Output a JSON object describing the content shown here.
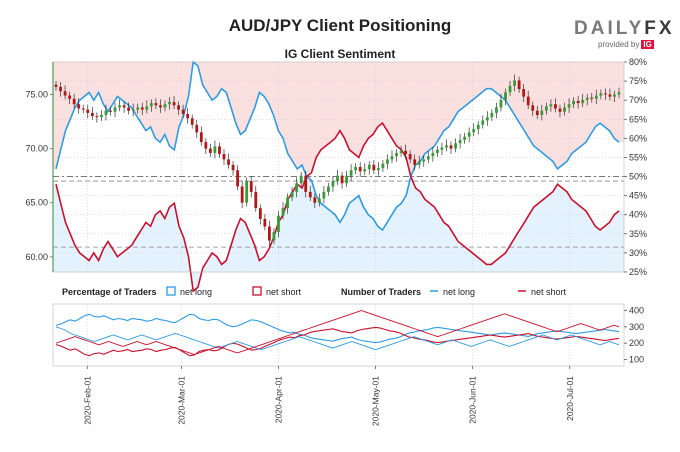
{
  "header": {
    "title": "AUD/JPY Client Positioning",
    "subtitle": "IG Client Sentiment",
    "logo_main_a": "DAILY",
    "logo_main_b": "FX",
    "logo_sub": "provided by",
    "logo_badge": "IG"
  },
  "colors": {
    "net_long": "#2f9be0",
    "net_short": "#c8102e",
    "long_fill": "#e3f2fc",
    "short_fill": "#fbe0e0",
    "candle_up": "#3a9a3a",
    "candle_down": "#b01818",
    "left_axis": "#3a8a3a"
  },
  "chart_data": [
    {
      "type": "line",
      "name": "main",
      "x_ticks": [
        "2020-Feb-01",
        "2020-Mar-01",
        "2020-Apr-01",
        "2020-May-01",
        "2020-Jun-01",
        "2020-Jul-01"
      ],
      "price_axis": {
        "ticks": [
          "60.00",
          "65.00",
          "70.00",
          "75.00"
        ],
        "ylim": [
          58.6,
          78.0
        ]
      },
      "pct_axis": {
        "ticks": [
          "25%",
          "30%",
          "35%",
          "40%",
          "45%",
          "50%",
          "55%",
          "60%",
          "65%",
          "70%",
          "75%",
          "80%"
        ],
        "ylim": [
          25,
          80
        ]
      },
      "reference_lines": {
        "price": [
          60.9,
          67.0
        ],
        "pct": [
          50
        ]
      },
      "price_close": [
        75.7,
        75.3,
        74.9,
        74.6,
        74.1,
        73.7,
        73.6,
        73.3,
        73.0,
        72.9,
        73.1,
        73.5,
        73.4,
        73.8,
        74.0,
        73.8,
        73.5,
        73.6,
        73.8,
        73.6,
        73.9,
        74.2,
        74.0,
        73.8,
        74.1,
        74.3,
        74.0,
        73.6,
        73.2,
        72.8,
        72.2,
        71.5,
        70.6,
        70.0,
        69.6,
        70.2,
        69.5,
        69.0,
        68.5,
        68.0,
        66.5,
        65.0,
        67.0,
        66.0,
        64.5,
        63.5,
        62.8,
        61.5,
        62.3,
        63.8,
        64.5,
        65.5,
        66.0,
        66.8,
        67.5,
        66.0,
        65.5,
        65.0,
        65.4,
        66.0,
        66.5,
        67.0,
        67.5,
        66.8,
        67.5,
        68.0,
        68.3,
        67.9,
        68.1,
        68.5,
        68.0,
        68.2,
        68.6,
        69.0,
        69.3,
        69.6,
        69.8,
        69.5,
        69.0,
        68.5,
        68.8,
        69.0,
        69.3,
        69.6,
        69.9,
        70.1,
        70.3,
        70.0,
        70.5,
        70.8,
        71.1,
        71.5,
        71.8,
        72.2,
        72.6,
        72.9,
        73.3,
        73.8,
        74.5,
        75.2,
        75.8,
        76.3,
        75.5,
        74.8,
        74.0,
        73.5,
        73.1,
        73.5,
        73.9,
        74.1,
        73.7,
        73.4,
        73.8,
        74.1,
        74.4,
        74.2,
        74.5,
        74.7,
        74.6,
        74.9,
        75.1,
        75.0,
        74.8,
        75.0,
        75.2
      ],
      "net_long_pct": [
        52,
        57,
        62,
        65,
        68,
        70,
        71,
        72,
        70,
        72,
        69,
        67,
        69,
        71,
        70,
        69,
        68,
        66,
        64,
        62,
        63,
        60,
        59,
        61,
        58,
        57,
        63,
        66,
        71,
        80,
        79,
        74,
        72,
        70,
        71,
        73,
        72,
        68,
        64,
        61,
        62,
        65,
        68,
        72,
        71,
        69,
        66,
        62,
        60,
        56,
        54,
        52,
        53,
        50,
        49,
        45,
        43,
        42,
        41,
        40,
        38,
        40,
        43,
        44,
        45,
        42,
        40,
        39,
        37,
        36,
        38,
        40,
        42,
        43,
        45,
        50,
        53,
        54,
        56,
        57,
        58,
        60,
        62,
        63,
        65,
        67,
        68,
        69,
        70,
        71,
        72,
        73,
        73,
        72,
        71,
        70,
        68,
        66,
        64,
        62,
        60,
        58,
        57,
        56,
        55,
        54,
        52,
        53,
        54,
        56,
        57,
        58,
        59,
        61,
        63,
        64,
        63,
        62,
        60,
        59
      ],
      "net_short_pct": [
        48,
        43,
        38,
        35,
        32,
        30,
        29,
        28,
        30,
        28,
        31,
        33,
        31,
        29,
        30,
        31,
        32,
        34,
        36,
        38,
        37,
        40,
        41,
        39,
        42,
        43,
        37,
        34,
        29,
        20,
        21,
        26,
        28,
        30,
        29,
        27,
        28,
        32,
        36,
        39,
        38,
        35,
        32,
        28,
        29,
        31,
        34,
        38,
        40,
        44,
        46,
        48,
        47,
        50,
        51,
        55,
        57,
        58,
        59,
        60,
        62,
        60,
        57,
        56,
        55,
        58,
        60,
        61,
        63,
        64,
        62,
        60,
        58,
        57,
        55,
        50,
        47,
        46,
        44,
        43,
        42,
        40,
        38,
        37,
        35,
        33,
        32,
        31,
        30,
        29,
        28,
        27,
        27,
        28,
        29,
        30,
        32,
        34,
        36,
        38,
        40,
        42,
        43,
        44,
        45,
        46,
        48,
        47,
        46,
        44,
        43,
        42,
        41,
        39,
        37,
        36,
        37,
        38,
        40,
        41
      ]
    },
    {
      "type": "line",
      "name": "bottom",
      "legend": {
        "pct_title": "Percentage of Traders",
        "pct_long": "net long",
        "pct_short": "net short",
        "num_title": "Number of Traders",
        "num_long": "net long",
        "num_short": "net short"
      },
      "right_axis": {
        "ticks": [
          "100",
          "200",
          "300",
          "400"
        ],
        "ylim": [
          60,
          440
        ]
      },
      "pct_long": [
        64,
        66,
        69,
        72,
        70,
        74,
        78,
        80,
        77,
        76,
        78,
        75,
        72,
        74,
        73,
        71,
        74,
        73,
        72,
        70,
        71,
        74,
        72,
        71,
        69,
        68,
        72,
        76,
        80,
        79,
        74,
        72,
        71,
        73,
        72,
        68,
        64,
        62,
        63,
        66,
        69,
        72,
        71,
        69,
        66,
        63,
        60,
        57,
        55,
        53,
        54,
        51,
        50,
        47,
        45,
        44,
        43,
        42,
        41,
        43,
        45,
        46,
        47,
        44,
        42,
        41,
        40,
        39,
        40,
        42,
        44,
        45,
        47,
        50,
        53,
        54,
        56,
        57,
        58,
        60,
        61,
        60,
        59,
        58,
        57,
        56,
        55,
        54,
        53,
        52,
        51,
        50,
        51,
        52,
        53,
        52,
        51,
        50,
        49,
        48,
        50,
        52,
        53,
        54,
        55,
        56,
        55,
        54,
        53,
        52,
        53,
        54,
        55,
        56,
        57,
        58,
        57,
        56,
        55
      ],
      "pct_short": [
        36,
        34,
        31,
        28,
        30,
        26,
        22,
        20,
        23,
        24,
        22,
        25,
        28,
        26,
        27,
        29,
        26,
        27,
        28,
        30,
        29,
        26,
        28,
        29,
        31,
        32,
        28,
        24,
        20,
        21,
        26,
        28,
        29,
        27,
        28,
        32,
        36,
        38,
        37,
        34,
        31,
        28,
        29,
        31,
        34,
        37,
        40,
        43,
        45,
        47,
        46,
        49,
        50,
        53,
        55,
        56,
        57,
        58,
        59,
        57,
        55,
        54,
        53,
        56,
        58,
        59,
        60,
        61,
        60,
        58,
        56,
        55,
        53,
        50,
        47,
        46,
        44,
        43,
        42,
        40,
        39,
        40,
        41,
        42,
        43,
        44,
        45,
        46,
        47,
        48,
        49,
        50,
        49,
        48,
        47,
        48,
        49,
        50,
        51,
        52,
        50,
        48,
        47,
        46,
        45,
        44,
        45,
        46,
        47,
        48,
        47,
        46,
        45,
        44,
        43,
        42,
        43,
        44,
        45
      ],
      "num_long": [
        300,
        290,
        280,
        260,
        250,
        240,
        230,
        220,
        210,
        220,
        230,
        240,
        250,
        240,
        230,
        220,
        230,
        240,
        250,
        240,
        230,
        220,
        230,
        240,
        250,
        260,
        250,
        240,
        230,
        220,
        210,
        200,
        190,
        180,
        170,
        180,
        190,
        200,
        210,
        200,
        190,
        180,
        170,
        160,
        170,
        180,
        190,
        200,
        210,
        220,
        230,
        240,
        230,
        220,
        210,
        200,
        190,
        180,
        170,
        180,
        190,
        200,
        210,
        200,
        190,
        180,
        170,
        160,
        170,
        180,
        190,
        200,
        210,
        220,
        230,
        240,
        230,
        220,
        210,
        200,
        190,
        200,
        210,
        220,
        210,
        200,
        190,
        180,
        190,
        200,
        210,
        220,
        210,
        200,
        190,
        180,
        190,
        200,
        210,
        220,
        230,
        240,
        250,
        240,
        230,
        220,
        230,
        240,
        250,
        240,
        230,
        220,
        210,
        200,
        190,
        200,
        210,
        200,
        190
      ],
      "num_short": [
        200,
        210,
        220,
        230,
        240,
        230,
        220,
        210,
        200,
        190,
        200,
        210,
        200,
        190,
        180,
        190,
        200,
        210,
        200,
        190,
        200,
        210,
        200,
        190,
        180,
        170,
        160,
        150,
        140,
        130,
        140,
        150,
        160,
        170,
        180,
        170,
        160,
        150,
        140,
        150,
        160,
        170,
        180,
        190,
        200,
        210,
        220,
        230,
        240,
        250,
        260,
        270,
        280,
        290,
        300,
        310,
        320,
        330,
        340,
        350,
        360,
        370,
        380,
        390,
        400,
        390,
        380,
        370,
        360,
        350,
        340,
        330,
        320,
        310,
        300,
        290,
        280,
        270,
        260,
        250,
        240,
        250,
        260,
        270,
        280,
        290,
        300,
        310,
        320,
        330,
        340,
        350,
        360,
        370,
        380,
        370,
        360,
        350,
        340,
        330,
        320,
        310,
        300,
        290,
        280,
        270,
        280,
        290,
        300,
        310,
        320,
        310,
        300,
        290,
        280,
        290,
        300,
        310,
        300
      ]
    }
  ]
}
